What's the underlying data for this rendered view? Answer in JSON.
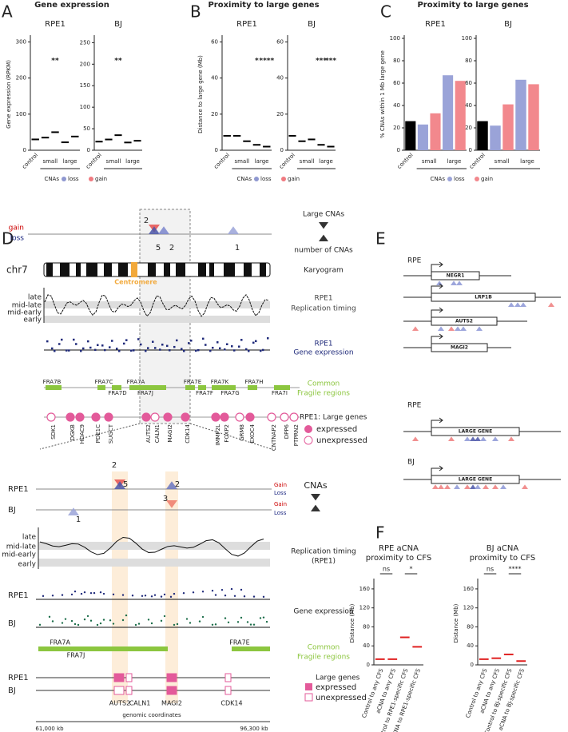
{
  "figure": {
    "panel_letters": [
      "A",
      "B",
      "C",
      "D",
      "E",
      "F"
    ],
    "titles": [
      "Gene expression",
      "Proximity to large genes",
      "Proximity to large genes"
    ]
  },
  "chart_data": [
    {
      "type": "strip",
      "title": "RPE1",
      "ylabel": "Gene expression (RPKM)",
      "categories": [
        "control",
        null,
        null,
        null,
        null
      ],
      "values": [
        30,
        35,
        50,
        22,
        38
      ],
      "color": "#000000",
      "significance": [
        null,
        null,
        "**",
        null,
        null
      ],
      "groups": [
        "small",
        "large"
      ],
      "ylim": [
        0,
        310
      ],
      "yticks": [
        0,
        100,
        200,
        300
      ],
      "legend": {
        "title": "CNAs",
        "items": [
          "loss",
          "gain"
        ],
        "colors": [
          "#8f98d0",
          "#f07a80"
        ]
      }
    },
    {
      "type": "strip",
      "title": "BJ",
      "categories": [
        "control",
        null,
        null,
        null,
        null
      ],
      "values": [
        20,
        25,
        35,
        18,
        22
      ],
      "color": "#000000",
      "significance": [
        null,
        null,
        "**",
        null,
        null
      ],
      "groups": [
        "small",
        "large"
      ],
      "ylim": [
        0,
        260
      ],
      "yticks": [
        0,
        50,
        100,
        150,
        200,
        250
      ]
    },
    {
      "type": "strip",
      "title": "RPE1",
      "ylabel": "Distance to large gene (Mb)",
      "categories": [
        "control",
        null,
        null,
        null,
        null
      ],
      "values": [
        8,
        8,
        5,
        3,
        2
      ],
      "color": "#000000",
      "significance": [
        null,
        null,
        null,
        "*",
        "****"
      ],
      "groups": [
        "small",
        "large"
      ],
      "ylim": [
        0,
        62
      ],
      "yticks": [
        0,
        20,
        40,
        60
      ],
      "legend": {
        "title": "CNAs",
        "items": [
          "loss",
          "gain"
        ],
        "colors": [
          "#8f98d0",
          "#f07a80"
        ]
      }
    },
    {
      "type": "strip",
      "title": "BJ",
      "categories": [
        "control",
        null,
        null,
        null,
        null
      ],
      "values": [
        8,
        5,
        6,
        3,
        2
      ],
      "color": "#000000",
      "significance": [
        null,
        null,
        null,
        "***",
        "***"
      ],
      "groups": [
        "small",
        "large"
      ],
      "ylim": [
        0,
        62
      ],
      "yticks": [
        0,
        20,
        40,
        60
      ]
    },
    {
      "type": "bar",
      "title": "RPE1",
      "ylabel": "% CNAs within 1 Mb large gene",
      "categories": [
        "control",
        null,
        null,
        null,
        null
      ],
      "values": [
        26,
        23,
        33,
        67,
        62
      ],
      "colors": [
        "#000000",
        "#9aa3d8",
        "#f2888d",
        "#9aa3d8",
        "#f2888d"
      ],
      "groups": [
        "small",
        "large"
      ],
      "ylim": [
        0,
        100
      ],
      "yticks": [
        0,
        20,
        40,
        60,
        80,
        100
      ],
      "legend": {
        "title": "CNAs",
        "items": [
          "loss",
          "gain"
        ],
        "colors": [
          "#9aa3d8",
          "#f2888d"
        ]
      }
    },
    {
      "type": "bar",
      "title": "BJ",
      "categories": [
        "control",
        null,
        null,
        null,
        null
      ],
      "values": [
        26,
        22,
        41,
        63,
        59
      ],
      "colors": [
        "#000000",
        "#9aa3d8",
        "#f2888d",
        "#9aa3d8",
        "#f2888d"
      ],
      "groups": [
        "small",
        "large"
      ],
      "ylim": [
        0,
        100
      ],
      "yticks": [
        0,
        20,
        40,
        60,
        80,
        100
      ]
    },
    {
      "type": "strip",
      "title": "RPE aCNA",
      "subtitle": "proximity to CFS",
      "ylabel": "Distance (Mb)",
      "categories": [
        "Control to any CFS",
        "aCNA to any CFS",
        "Control to RPE1-specific CFS",
        "aCNA to RPE1-specific CFS"
      ],
      "values": [
        12,
        12,
        58,
        38
      ],
      "color": "#e02020",
      "comparisons": [
        "ns",
        "*"
      ],
      "ylim": [
        0,
        175
      ],
      "yticks": [
        0,
        40,
        80,
        120,
        160
      ]
    },
    {
      "type": "strip",
      "title": "BJ aCNA",
      "subtitle": "proximity to CFS",
      "ylabel": "Distance (Mb)",
      "categories": [
        "Control to any CFS",
        "aCNA to any CFS",
        "Control to BJ-specific CFS",
        "aCNA to BJ-specific CFS"
      ],
      "values": [
        12,
        14,
        22,
        8
      ],
      "color": "#e02020",
      "comparisons": [
        "ns",
        "****"
      ],
      "ylim": [
        0,
        175
      ],
      "yticks": [
        0,
        40,
        80,
        120,
        160
      ]
    }
  ],
  "diagram": {
    "D": {
      "gain": "gain",
      "loss": "loss",
      "chromosome": "chr7",
      "centromere": "Centromere",
      "cna_counts": [
        2,
        5,
        2,
        1
      ],
      "large_cnas": "Large CNAs",
      "number_of_cnas": "number of CNAs",
      "karyogram": "Karyogram",
      "replication_timing": [
        "RPE1",
        "Replication timing"
      ],
      "gene_expression": [
        "RPE1",
        "Gene expression"
      ],
      "fragile": [
        "Common",
        "Fragile regions"
      ],
      "large_genes": "RPE1: Large genes",
      "expressed": "expressed",
      "unexpressed": "unexpressed",
      "timing_levels": [
        "late",
        "mid-late",
        "mid-early",
        "early"
      ],
      "fragile_sites": [
        "FRA7B",
        "FRA7C",
        "FRA7D",
        "FRA7A",
        "FRA7J",
        "FRA7E",
        "FRA7F",
        "FRA7K",
        "FRA7G",
        "FRA7H",
        "FRA7I"
      ],
      "genes": [
        {
          "name": "SDK1",
          "expressed": false
        },
        {
          "name": "DGKB",
          "expressed": true
        },
        {
          "name": "HDAC9",
          "expressed": true
        },
        {
          "name": "PDE1C",
          "expressed": true
        },
        {
          "name": "SUGCT",
          "expressed": true
        },
        {
          "name": "AUTS2",
          "expressed": true
        },
        {
          "name": "CALN1",
          "expressed": false
        },
        {
          "name": "MAGI2",
          "expressed": true
        },
        {
          "name": "CDK14",
          "expressed": true
        },
        {
          "name": "IMMP2L",
          "expressed": true
        },
        {
          "name": "FOXP2",
          "expressed": true
        },
        {
          "name": "GRM8",
          "expressed": false
        },
        {
          "name": "EXOC4",
          "expressed": true
        },
        {
          "name": "CNTNAP2",
          "expressed": false
        },
        {
          "name": "DPP6",
          "expressed": false
        },
        {
          "name": "PTPRN2",
          "expressed": false
        }
      ]
    },
    "zoom": {
      "rpe1": "RPE1",
      "bj": "BJ",
      "gain": "Gain",
      "loss": "Loss",
      "cnas": "CNAs",
      "cna_counts": [
        2,
        5,
        2,
        3,
        1
      ],
      "timing_title": [
        "Replication timing",
        "(RPE1)"
      ],
      "timing_levels": [
        "late",
        "mid-late",
        "mid-early",
        "early"
      ],
      "gene_expression": "Gene expression",
      "fragile_sites": [
        "FRA7A",
        "FRA7J",
        "FRA7E"
      ],
      "fragile": [
        "Common",
        "Fragile regions"
      ],
      "large_genes": "Large genes",
      "expressed": "expressed",
      "unexpressed": "unexpressed",
      "genes": [
        {
          "name": "AUTS2",
          "rpe1": true,
          "bj": false
        },
        {
          "name": "CALN1",
          "rpe1": false,
          "bj": false
        },
        {
          "name": "MAGI2",
          "rpe1": true,
          "bj": true
        },
        {
          "name": "CDK14",
          "rpe1": false,
          "bj": false
        }
      ],
      "xlabel": "genomic coordinates",
      "xlim": [
        {
          "value": 61000,
          "label": "61,000 kb"
        },
        {
          "value": 96300,
          "label": "96,300 kb"
        }
      ]
    },
    "E": {
      "row_labels": [
        "RPE",
        "RPE",
        "BJ"
      ],
      "genes": [
        "NEGR1",
        "LRP1B",
        "AUTS2",
        "MAGI2"
      ],
      "large_gene": [
        "LARGE GENE",
        "LARGE GENE"
      ]
    }
  }
}
